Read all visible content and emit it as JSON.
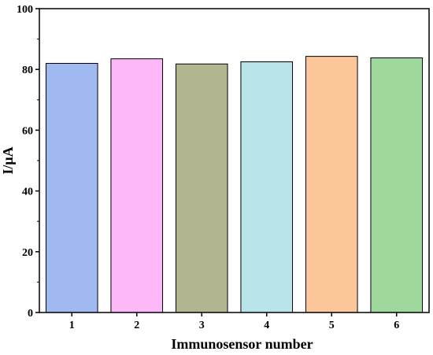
{
  "chart_data": {
    "type": "bar",
    "title": "",
    "xlabel": "Immunosensor number",
    "ylabel": "I/μA",
    "categories": [
      "1",
      "2",
      "3",
      "4",
      "5",
      "6"
    ],
    "values": [
      82.0,
      83.5,
      81.8,
      82.5,
      84.3,
      83.8
    ],
    "colors": [
      "#a0b9f1",
      "#fdb8f8",
      "#b3b591",
      "#b9e4ea",
      "#fbc79a",
      "#9fd89c"
    ],
    "ylim": [
      0,
      100
    ],
    "yticks": [
      0,
      20,
      40,
      60,
      80,
      100
    ],
    "grid": false,
    "legend": "none"
  }
}
